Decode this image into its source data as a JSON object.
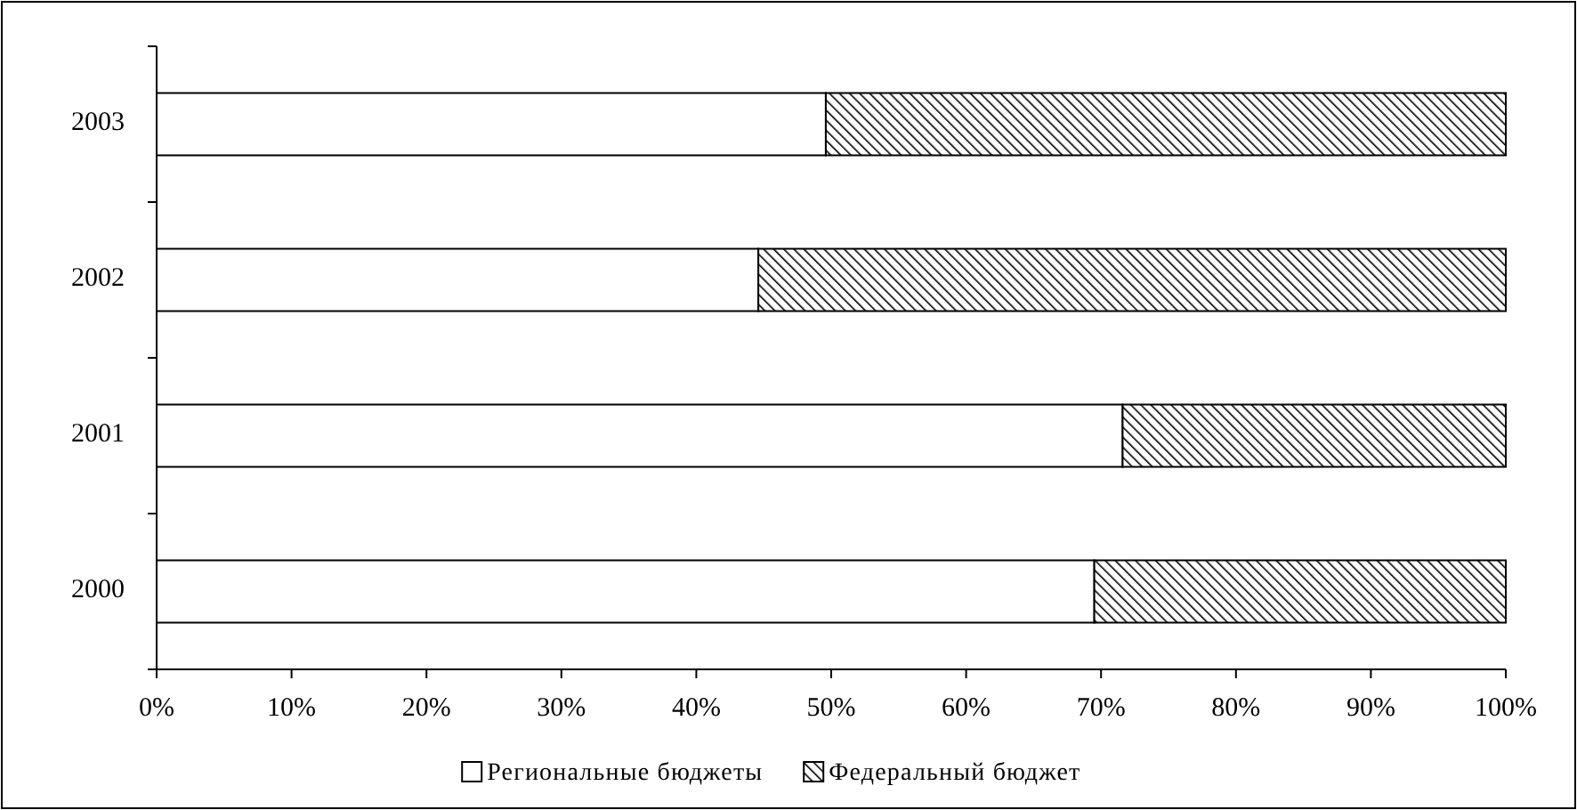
{
  "chart_data": {
    "type": "bar",
    "orientation": "horizontal",
    "stacked": true,
    "categories": [
      "2003",
      "2002",
      "2001",
      "2000"
    ],
    "series": [
      {
        "name": "Региональные бюджеты",
        "color": "#ffffff",
        "values": [
          49.6,
          44.6,
          71.6,
          69.5
        ]
      },
      {
        "name": "Федеральный бюджет",
        "color": "#000000",
        "values": [
          50.4,
          55.4,
          28.4,
          30.5
        ]
      }
    ],
    "xlim": [
      0,
      100
    ],
    "xticks": [
      {
        "value": 0,
        "label": "0%"
      },
      {
        "value": 10,
        "label": "10%"
      },
      {
        "value": 20,
        "label": "20%"
      },
      {
        "value": 30,
        "label": "30%"
      },
      {
        "value": 40,
        "label": "40%"
      },
      {
        "value": 50,
        "label": "50%"
      },
      {
        "value": 60,
        "label": "60%"
      },
      {
        "value": 70,
        "label": "70%"
      },
      {
        "value": 80,
        "label": "80%"
      },
      {
        "value": 90,
        "label": "90%"
      },
      {
        "value": 100,
        "label": "100%"
      }
    ],
    "legend": "bottom",
    "grid": false
  }
}
